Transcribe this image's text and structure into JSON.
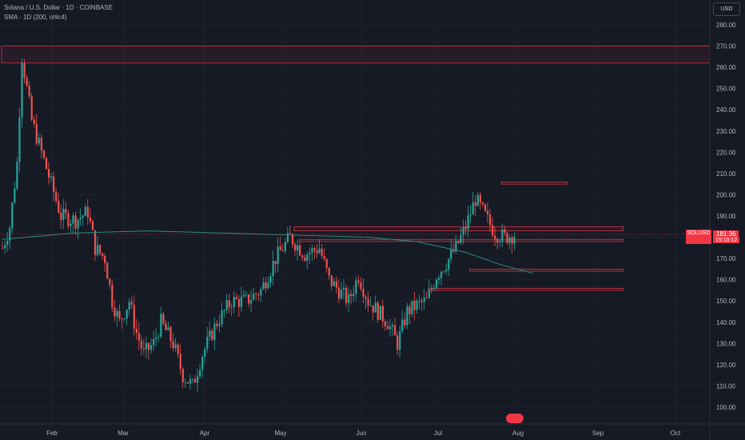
{
  "header": {
    "title": "Solana / U.S. Dollar · 1D · COINBASE",
    "indicator": "SMA · 1D (200, ohlc4)"
  },
  "currency_button": "USD",
  "price_tag": {
    "symbol": "SOLUSD",
    "value": "181.36",
    "countdown": "15:10:12"
  },
  "colors": {
    "background": "#161a25",
    "up": "#26a69a",
    "down": "#ef5350",
    "sma": "#2a8c7c",
    "zone": "#f23645"
  },
  "chart_data": {
    "type": "candlestick",
    "title": "Solana / U.S. Dollar · 1D · COINBASE",
    "x_ticks": [
      "Feb",
      "Mar",
      "Apr",
      "May",
      "Jun",
      "Jul",
      "Aug",
      "Sep",
      "Oct"
    ],
    "y_ticks": [
      100,
      110,
      120,
      130,
      140,
      150,
      160,
      170,
      180,
      190,
      200,
      210,
      220,
      230,
      240,
      250,
      260,
      270,
      280
    ],
    "ylim": [
      95,
      285
    ],
    "last_price": 181.36,
    "sma_label": "SMA (200, ohlc4)",
    "sma": [
      [
        0,
        179
      ],
      [
        30,
        182
      ],
      [
        60,
        183
      ],
      [
        90,
        182
      ],
      [
        120,
        181
      ],
      [
        150,
        180
      ],
      [
        170,
        178
      ],
      [
        190,
        173
      ],
      [
        205,
        167
      ],
      [
        218,
        163
      ]
    ],
    "zones": [
      {
        "from": 0,
        "to": 300,
        "low": 262,
        "high": 270
      },
      {
        "from": 120,
        "to": 255,
        "low": 183,
        "high": 185
      },
      {
        "from": 122,
        "to": 255,
        "low": 178,
        "high": 179
      },
      {
        "from": 205,
        "to": 232,
        "low": 205,
        "high": 206
      },
      {
        "from": 192,
        "to": 255,
        "low": 164,
        "high": 165
      },
      {
        "from": 175,
        "to": 255,
        "low": 155,
        "high": 156
      }
    ],
    "candles": []
  }
}
